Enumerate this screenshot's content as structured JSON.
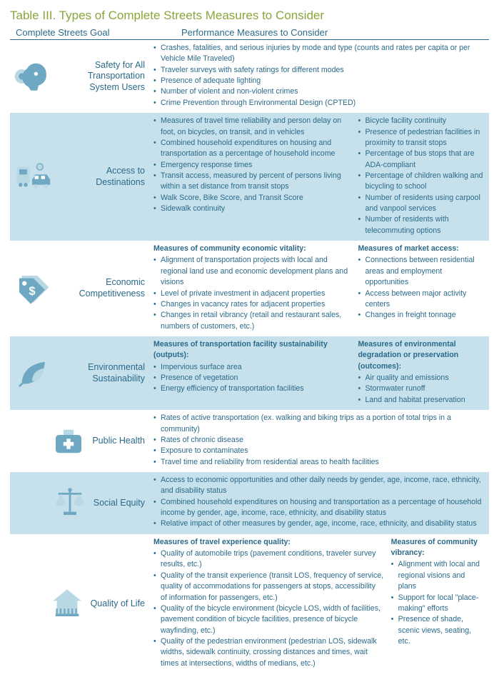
{
  "title": "Table III.  Types of Complete Streets Measures to Consider",
  "header": {
    "goal": "Complete Streets Goal",
    "performance": "Performance Measures to Consider"
  },
  "colors": {
    "title_color": "#8aa63b",
    "text_color": "#2b6a8a",
    "shade_bg": "#c6e1ec",
    "icon_main": "#6fa8c2",
    "icon_accent": "#b8d8e4"
  },
  "rows": [
    {
      "label": "Safety for All Transportation System Users",
      "icon": "safety-head-icon",
      "items": [
        "Crashes, fatalities, and serious injuries by mode and type (counts and rates per capita or per Vehicle Mile Traveled)",
        "Traveler surveys with safety ratings for different modes",
        "Presence of adequate lighting",
        "Number of violent and non-violent crimes",
        "Crime Prevention through Environmental Design (CPTED)"
      ]
    },
    {
      "label": "Access to Destinations",
      "icon": "train-car-icon",
      "left_items": [
        "Measures of travel time reliability and person delay on foot, on bicycles, on transit, and in vehicles",
        "Combined household expenditures on housing and transportation as a percentage of household income",
        "Emergency response times",
        "Transit access, measured by percent of persons living within a set distance from transit stops",
        "Walk Score, Bike Score, and Transit Score",
        "Sidewalk continuity"
      ],
      "right_items": [
        "Bicycle facility continuity",
        "Presence of pedestrian facilities in proximity to transit stops",
        "Percentage of bus stops that are ADA-compliant",
        "Percentage of children walking and bicycling to school",
        "Number of residents using carpool and vanpool services",
        "Number of residents with telecommuting options"
      ]
    },
    {
      "label": "Economic Competitiveness",
      "icon": "price-tag-icon",
      "left_head": "Measures of community economic vitality:",
      "left_items": [
        "Alignment of transportation projects with local and regional land use and economic development plans and visions",
        "Level of private investment in adjacent properties",
        "Changes in vacancy rates for adjacent properties",
        "Changes in retail vibrancy (retail and restaurant sales, numbers of customers, etc.)"
      ],
      "right_head": "Measures of market access:",
      "right_items": [
        "Connections between residential areas and employment opportunities",
        "Access between major activity centers",
        "Changes in freight tonnage"
      ]
    },
    {
      "label": "Environmental Sustainability",
      "icon": "leaf-icon",
      "left_head": "Measures of transportation facility sustainability (outputs):",
      "left_items": [
        "Impervious surface area",
        "Presence of vegetation",
        "Energy efficiency of transportation facilities"
      ],
      "right_head": "Measures of environmental degradation or preservation (outcomes):",
      "right_items": [
        "Air quality and emissions",
        "Stormwater runoff",
        "Land and habitat preservation"
      ]
    },
    {
      "label": "Public Health",
      "icon": "medkit-icon",
      "items": [
        "Rates of active transportation (ex. walking and biking trips as a portion of total trips in a community)",
        "Rates of chronic disease",
        "Exposure to contaminates",
        "Travel time and reliability from residential areas to health facilities"
      ]
    },
    {
      "label": "Social Equity",
      "icon": "scales-icon",
      "items": [
        "Access to economic opportunities and other daily needs by gender, age, income, race, ethnicity, and disability status",
        "Combined household expenditures on housing and transportation as a percentage of household income by gender, age, income, race, ethnicity, and disability status",
        "Relative impact of other measures by gender, age, income, race, ethnicity, and disability status"
      ]
    },
    {
      "label": "Quality of Life",
      "icon": "house-icon",
      "left_head": "Measures of travel experience quality:",
      "left_items": [
        "Quality of automobile trips (pavement conditions, traveler survey results, etc.)",
        "Quality of the transit experience (transit LOS, frequency of service, quality of accommodations for passengers at stops, accessibility of information for passengers, etc.)",
        "Quality of the bicycle environment (bicycle LOS, width of facilities, pavement condition of bicycle facilities, presence of bicycle wayfinding, etc.)",
        "Quality of the pedestrian environment (pedestrian LOS, sidewalk widths, sidewalk continuity, crossing distances and times, wait times at intersections, widths of medians, etc.)"
      ],
      "right_head": "Measures of community vibrancy:",
      "right_items": [
        "Alignment with local and regional visions and plans",
        "Support for local \"place-making\" efforts",
        "Presence of shade, scenic views, seating, etc."
      ]
    }
  ]
}
